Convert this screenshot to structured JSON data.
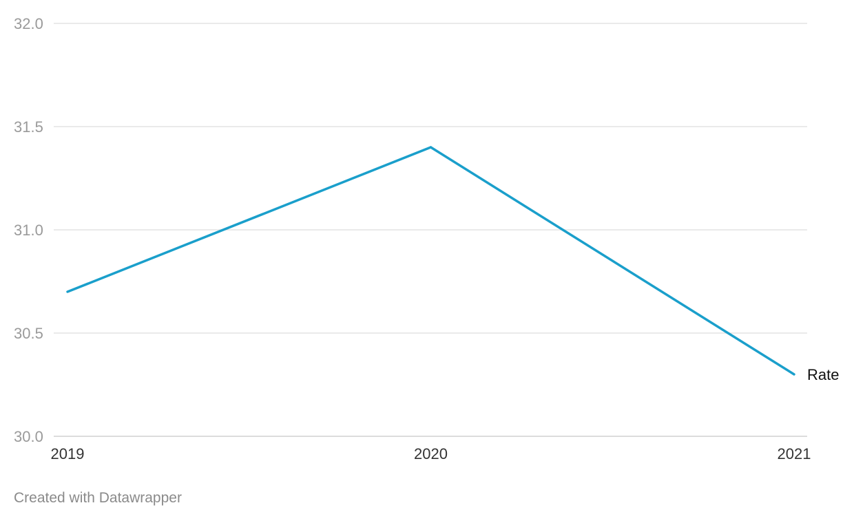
{
  "chart_data": {
    "type": "line",
    "x": [
      "2019",
      "2020",
      "2021"
    ],
    "series": [
      {
        "name": "Rate",
        "values": [
          30.7,
          31.4,
          30.3
        ],
        "color": "#1a9fcb"
      }
    ],
    "ylim": [
      30.0,
      32.0
    ],
    "yticks": [
      "30.0",
      "30.5",
      "31.0",
      "31.5",
      "32.0"
    ],
    "grid": true,
    "legend": "inline-end-label"
  },
  "footer": {
    "credit": "Created with Datawrapper"
  }
}
